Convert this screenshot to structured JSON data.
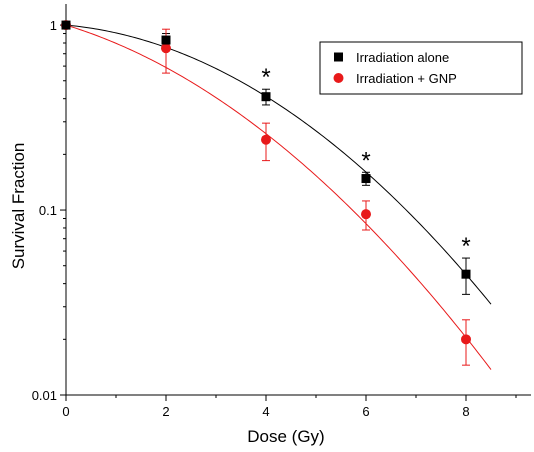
{
  "chart_data": {
    "type": "scatter",
    "xlabel": "Dose (Gy)",
    "ylabel": "Survival Fraction",
    "x_ticks": [
      "0",
      "2",
      "4",
      "6",
      "8"
    ],
    "y_ticks": [
      "0.01",
      "0.1",
      "1"
    ],
    "xlim": [
      0,
      9.3
    ],
    "ylim": [
      0.01,
      1.3
    ],
    "yscale": "log",
    "grid": false,
    "legend_position": "top-right",
    "series": [
      {
        "name": "Irradiation alone",
        "color": "#000000",
        "marker": "square",
        "x": [
          0,
          2,
          4,
          6,
          8
        ],
        "y": [
          1.0,
          0.83,
          0.41,
          0.148,
          0.045
        ],
        "err": [
          0.0,
          0.07,
          0.04,
          0.012,
          0.01
        ],
        "fit": {
          "alpha": 0.056,
          "beta": 0.0415
        }
      },
      {
        "name": "Irradiation + GNP",
        "color": "#e8191a",
        "marker": "circle",
        "x": [
          0,
          2,
          4,
          6,
          8
        ],
        "y": [
          1.0,
          0.75,
          0.24,
          0.095,
          0.02
        ],
        "err": [
          0.0,
          0.2,
          0.055,
          0.017,
          0.0055
        ],
        "fit": {
          "alpha": 0.19,
          "beta": 0.037
        }
      }
    ],
    "annotations": [
      {
        "text": "*",
        "x": 4
      },
      {
        "text": "*",
        "x": 6
      },
      {
        "text": "*",
        "x": 8
      }
    ]
  }
}
